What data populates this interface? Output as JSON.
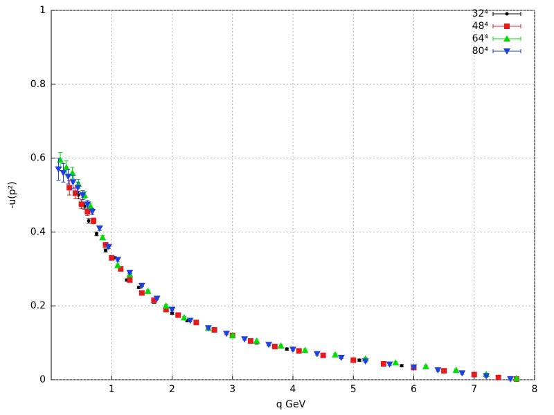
{
  "chart_data": {
    "type": "scatter",
    "xlabel": "q GeV",
    "ylabel": "-u(p²)",
    "xlim": [
      0,
      8
    ],
    "xticks": [
      1,
      2,
      3,
      4,
      5,
      6,
      7,
      8
    ],
    "ylim": [
      0,
      1
    ],
    "yticks": [
      0,
      0.2,
      0.4,
      0.6,
      0.8,
      1
    ],
    "grid": true,
    "legend": "top-right",
    "series": [
      {
        "name": "32⁴",
        "color": "#000000",
        "marker": "circle",
        "x": [
          0.45,
          0.55,
          0.62,
          0.75,
          0.9,
          1.05,
          1.25,
          1.45,
          1.7,
          2.0,
          2.25,
          2.6,
          3.0,
          3.4,
          3.9,
          4.5,
          5.1,
          5.8,
          6.5,
          7.2
        ],
        "values": [
          0.5,
          0.47,
          0.43,
          0.395,
          0.35,
          0.33,
          0.27,
          0.25,
          0.21,
          0.18,
          0.16,
          0.14,
          0.12,
          0.1,
          0.083,
          0.068,
          0.053,
          0.038,
          0.025,
          0.013
        ],
        "errors": [
          0.01,
          0.008,
          0.006,
          0.005,
          0.004,
          0.003,
          0.003,
          0.003,
          0.003,
          0.003,
          0.003,
          0.003,
          0.003,
          0.003,
          0.003,
          0.003,
          0.003,
          0.003,
          0.003,
          0.003
        ]
      },
      {
        "name": "48⁴",
        "color": "#e41a1c",
        "marker": "square",
        "x": [
          0.3,
          0.4,
          0.5,
          0.6,
          0.7,
          0.9,
          1.0,
          1.15,
          1.3,
          1.5,
          1.7,
          1.9,
          2.1,
          2.4,
          2.7,
          3.0,
          3.3,
          3.7,
          4.1,
          4.5,
          5.0,
          5.5,
          6.0,
          6.5,
          7.0,
          7.4,
          7.7
        ],
        "values": [
          0.52,
          0.505,
          0.475,
          0.455,
          0.43,
          0.365,
          0.33,
          0.3,
          0.27,
          0.235,
          0.215,
          0.19,
          0.175,
          0.155,
          0.135,
          0.12,
          0.105,
          0.09,
          0.078,
          0.066,
          0.053,
          0.043,
          0.033,
          0.024,
          0.014,
          0.006,
          0.002
        ],
        "errors": [
          0.02,
          0.015,
          0.012,
          0.01,
          0.008,
          0.005,
          0.004,
          0.003,
          0.003,
          0.003,
          0.003,
          0.003,
          0.003,
          0.003,
          0.003,
          0.003,
          0.003,
          0.003,
          0.003,
          0.003,
          0.003,
          0.003,
          0.003,
          0.003,
          0.003,
          0.003,
          0.003
        ]
      },
      {
        "name": "64⁴",
        "color": "#00dd00",
        "marker": "triangle-up",
        "x": [
          0.15,
          0.25,
          0.35,
          0.45,
          0.55,
          0.65,
          0.85,
          1.1,
          1.3,
          1.6,
          1.9,
          2.2,
          2.6,
          3.0,
          3.4,
          3.8,
          4.2,
          4.7,
          5.2,
          5.7,
          6.2,
          6.7,
          7.2,
          7.7
        ],
        "values": [
          0.595,
          0.575,
          0.56,
          0.53,
          0.5,
          0.47,
          0.385,
          0.31,
          0.285,
          0.24,
          0.2,
          0.168,
          0.14,
          0.12,
          0.105,
          0.092,
          0.08,
          0.068,
          0.057,
          0.046,
          0.036,
          0.026,
          0.015,
          0.004
        ],
        "errors": [
          0.02,
          0.018,
          0.015,
          0.012,
          0.01,
          0.008,
          0.005,
          0.003,
          0.003,
          0.003,
          0.003,
          0.003,
          0.003,
          0.003,
          0.003,
          0.003,
          0.003,
          0.003,
          0.003,
          0.003,
          0.003,
          0.003,
          0.003,
          0.003
        ]
      },
      {
        "name": "80⁴",
        "color": "#1f3fe0",
        "marker": "triangle-down",
        "x": [
          0.12,
          0.2,
          0.28,
          0.36,
          0.44,
          0.52,
          0.6,
          0.68,
          0.8,
          0.95,
          1.1,
          1.3,
          1.5,
          1.75,
          2.0,
          2.3,
          2.6,
          2.9,
          3.2,
          3.6,
          4.0,
          4.4,
          4.8,
          5.2,
          5.6,
          6.0,
          6.4,
          6.8,
          7.2,
          7.6
        ],
        "values": [
          0.57,
          0.56,
          0.55,
          0.535,
          0.52,
          0.5,
          0.475,
          0.455,
          0.41,
          0.36,
          0.325,
          0.29,
          0.255,
          0.22,
          0.19,
          0.16,
          0.14,
          0.125,
          0.11,
          0.095,
          0.082,
          0.07,
          0.06,
          0.05,
          0.042,
          0.034,
          0.026,
          0.018,
          0.01,
          0.002
        ],
        "errors": [
          0.03,
          0.025,
          0.02,
          0.018,
          0.015,
          0.012,
          0.01,
          0.008,
          0.006,
          0.005,
          0.004,
          0.003,
          0.003,
          0.003,
          0.003,
          0.003,
          0.003,
          0.003,
          0.003,
          0.003,
          0.003,
          0.003,
          0.003,
          0.003,
          0.003,
          0.003,
          0.003,
          0.003,
          0.003,
          0.003
        ]
      }
    ]
  }
}
